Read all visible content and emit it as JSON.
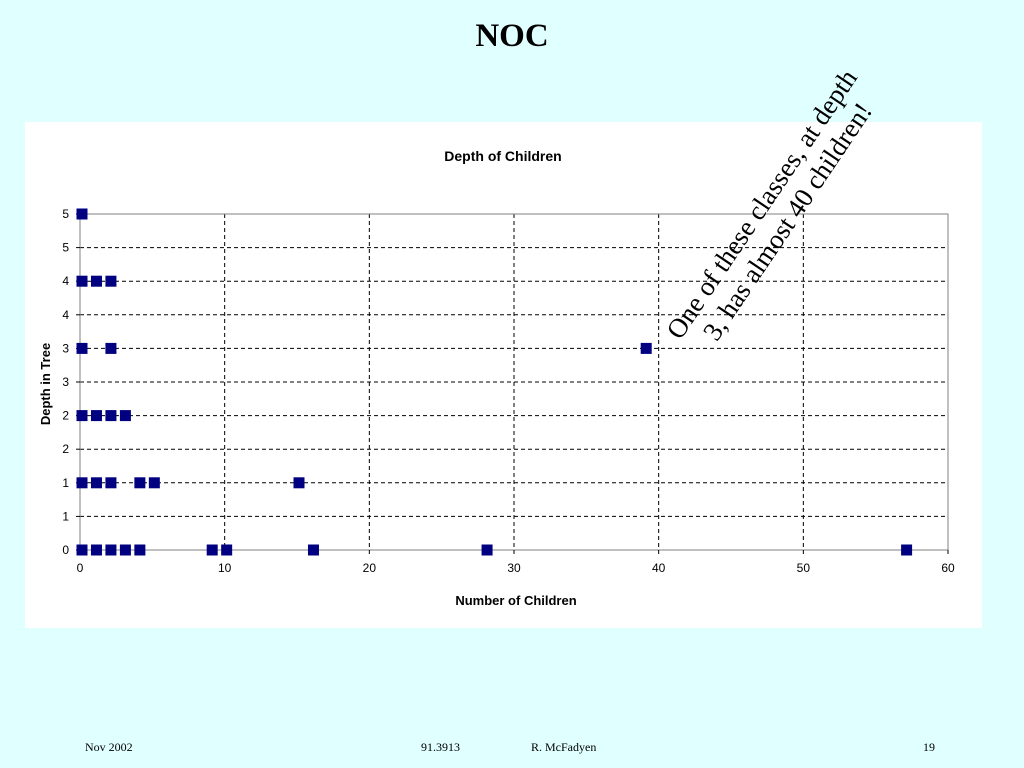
{
  "slide": {
    "title": "NOC",
    "annotation": "One of these classes, at depth 3, has almost 40 children!",
    "footer": {
      "date": "Nov 2002",
      "course": "91.3913",
      "author": "R. McFadyen",
      "page": "19"
    }
  },
  "colors": {
    "background": "#e0ffff",
    "panel": "#ffffff",
    "marker": "#000080",
    "grid": "#000000"
  },
  "chart_data": {
    "type": "scatter",
    "title": "Depth of Children",
    "xlabel": "Number of Children",
    "ylabel": "Depth in Tree",
    "xlim": [
      0,
      60
    ],
    "ylim": [
      0,
      5
    ],
    "x_ticks": [
      "0",
      "10",
      "20",
      "30",
      "40",
      "50",
      "60"
    ],
    "y_ticks": [
      "0",
      "1",
      "1",
      "2",
      "2",
      "3",
      "3",
      "4",
      "4",
      "5",
      "5"
    ],
    "grid": "dashed",
    "series": [
      {
        "points": [
          [
            0,
            5
          ],
          [
            0,
            4
          ],
          [
            1,
            4
          ],
          [
            2,
            4
          ],
          [
            0,
            3
          ],
          [
            2,
            3
          ],
          [
            39,
            3
          ],
          [
            0,
            2
          ],
          [
            1,
            2
          ],
          [
            2,
            2
          ],
          [
            3,
            2
          ],
          [
            0,
            1
          ],
          [
            1,
            1
          ],
          [
            2,
            1
          ],
          [
            4,
            1
          ],
          [
            5,
            1
          ],
          [
            15,
            1
          ],
          [
            0,
            0
          ],
          [
            1,
            0
          ],
          [
            2,
            0
          ],
          [
            3,
            0
          ],
          [
            4,
            0
          ],
          [
            9,
            0
          ],
          [
            10,
            0
          ],
          [
            16,
            0
          ],
          [
            28,
            0
          ],
          [
            57,
            0
          ]
        ]
      }
    ]
  }
}
